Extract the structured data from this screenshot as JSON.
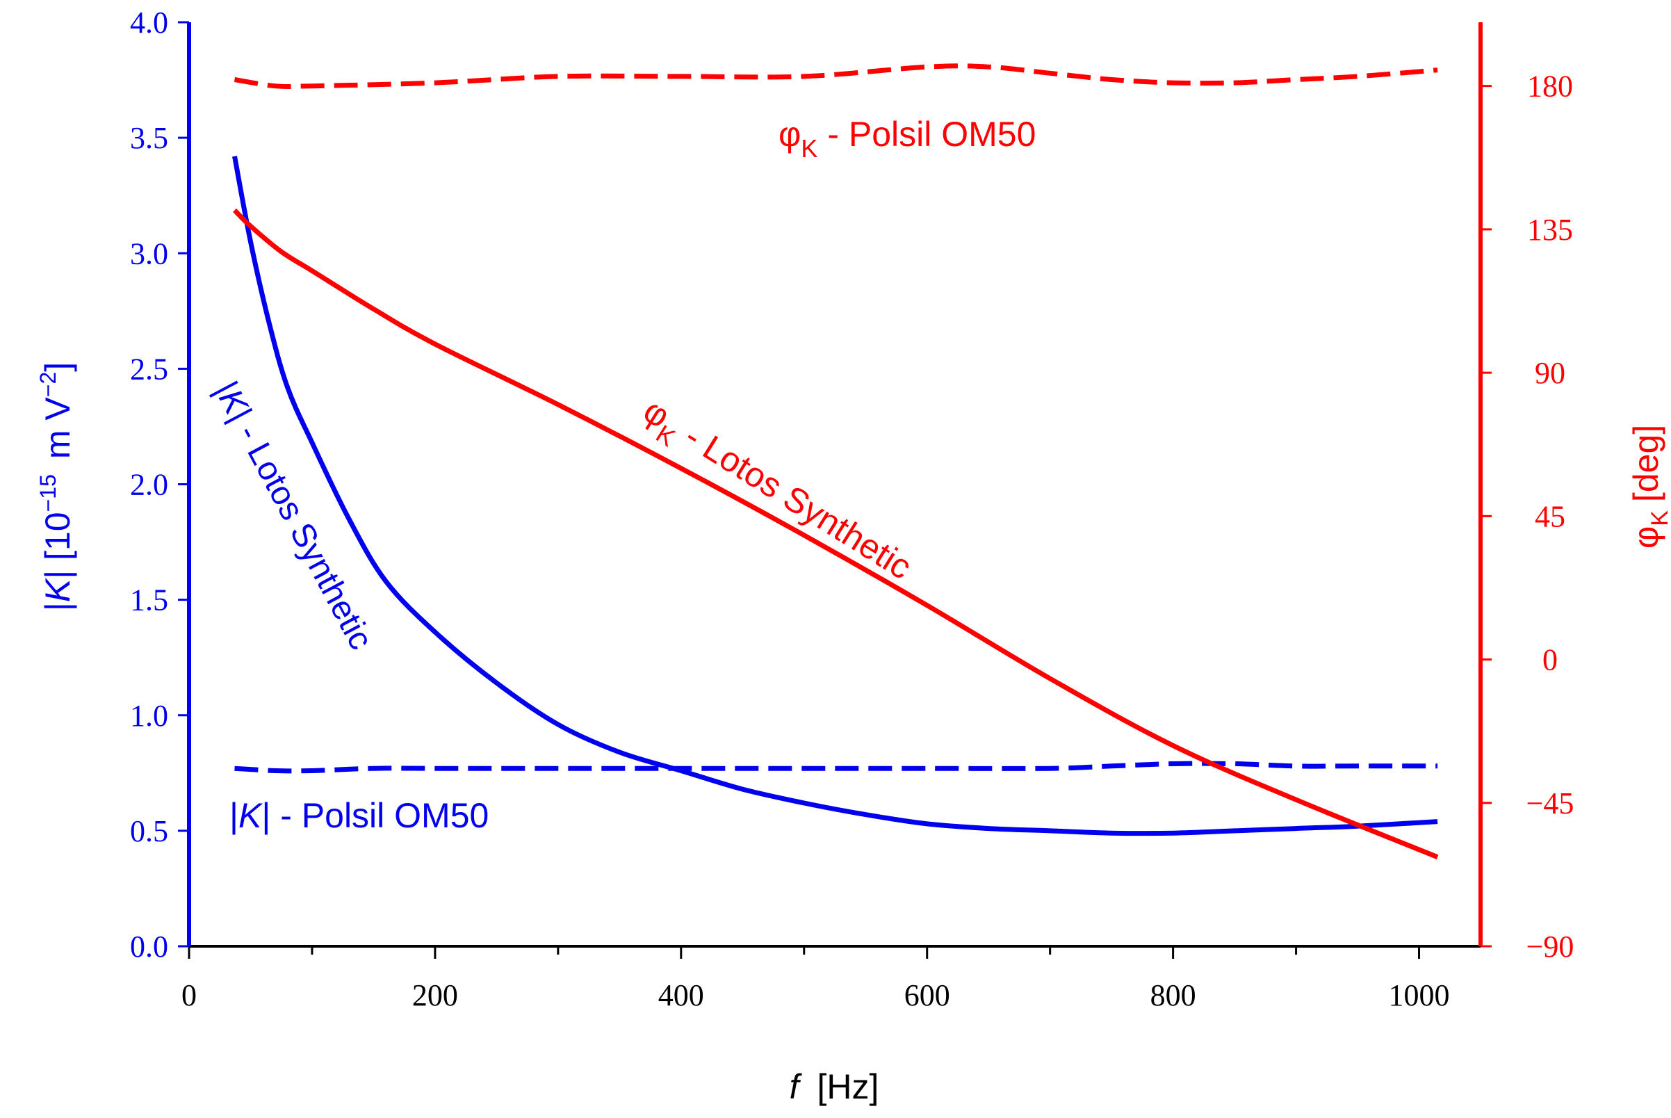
{
  "chart_data": {
    "type": "line",
    "x": {
      "label": "f",
      "unit": "[Hz]",
      "lim": [
        0,
        1050
      ],
      "ticks": [
        0,
        200,
        400,
        600,
        800,
        1000
      ],
      "tick_labels": [
        "0",
        "200",
        "400",
        "600",
        "800",
        "1000"
      ],
      "minor_ticks": [
        100,
        300,
        500,
        700,
        900
      ]
    },
    "y_left": {
      "label_prefix": "|",
      "label_italic": "K",
      "label_mid": "| [10",
      "label_exp": "−15",
      "label_unit": "m V",
      "label_unit_exp": "−2",
      "label_close": "]",
      "lim": [
        0,
        4
      ],
      "ticks": [
        0,
        0.5,
        1,
        1.5,
        2,
        2.5,
        3,
        3.5,
        4
      ],
      "tick_labels": [
        "0.0",
        "0.5",
        "1.0",
        "1.5",
        "2.0",
        "2.5",
        "3.0",
        "3.5",
        "4.0"
      ],
      "color": "#0000ee"
    },
    "y_right": {
      "label_symbol": "φ",
      "label_sub": "K",
      "label_unit": "[deg]",
      "lim": [
        -90,
        200
      ],
      "ticks": [
        -90,
        -45,
        0,
        45,
        90,
        135,
        180
      ],
      "tick_labels": [
        "−90",
        "−45",
        "0",
        "45",
        "90",
        "135",
        "180"
      ],
      "color": "#ff0000"
    },
    "series": [
      {
        "name": "|K| - Lotos Synthetic",
        "axis": "left",
        "style": "solid",
        "color": "#0000ee",
        "x": [
          37,
          50,
          65,
          80,
          100,
          130,
          160,
          200,
          250,
          300,
          350,
          400,
          450,
          500,
          550,
          600,
          650,
          700,
          750,
          800,
          850,
          900,
          950,
          1015
        ],
        "y": [
          3.42,
          3.05,
          2.7,
          2.42,
          2.18,
          1.85,
          1.58,
          1.36,
          1.14,
          0.96,
          0.84,
          0.76,
          0.68,
          0.62,
          0.57,
          0.53,
          0.51,
          0.5,
          0.49,
          0.49,
          0.5,
          0.51,
          0.52,
          0.54
        ]
      },
      {
        "name": "|K| - Polsil OM50",
        "axis": "left",
        "style": "dashed",
        "color": "#0000ee",
        "x": [
          37,
          70,
          100,
          150,
          200,
          300,
          400,
          500,
          600,
          700,
          750,
          800,
          850,
          900,
          950,
          1015
        ],
        "y": [
          0.77,
          0.76,
          0.76,
          0.77,
          0.77,
          0.77,
          0.77,
          0.77,
          0.77,
          0.77,
          0.78,
          0.79,
          0.79,
          0.78,
          0.78,
          0.78
        ]
      },
      {
        "name": "φK - Lotos Synthetic",
        "axis": "right",
        "style": "solid",
        "color": "#ff0000",
        "x": [
          37,
          50,
          75,
          100,
          150,
          200,
          300,
          400,
          500,
          600,
          700,
          800,
          900,
          1015
        ],
        "y": [
          141,
          136,
          128,
          122,
          110,
          99,
          80,
          60,
          39,
          17,
          -6,
          -27,
          -44,
          -62
        ]
      },
      {
        "name": "φK - Polsil OM50",
        "axis": "right",
        "style": "dashed",
        "color": "#ff0000",
        "x": [
          37,
          70,
          100,
          200,
          300,
          400,
          500,
          600,
          650,
          700,
          750,
          800,
          850,
          900,
          950,
          1015
        ],
        "y": [
          182,
          180,
          180,
          181,
          183,
          183,
          183,
          186,
          186,
          184,
          182,
          181,
          181,
          182,
          183,
          185
        ]
      }
    ],
    "annotations": [
      {
        "name": "label-phi-polsil",
        "symbol": "φ",
        "sub": "K",
        "rest": " - Polsil OM50",
        "color": "#ff0000"
      },
      {
        "name": "label-phi-lotos",
        "symbol": "φ",
        "sub": "K",
        "rest": " - Lotos Synthetic",
        "color": "#ff0000"
      },
      {
        "name": "label-k-lotos",
        "pre": "|",
        "italic": "K",
        "rest": "| - Lotos Synthetic",
        "color": "#0000ee"
      },
      {
        "name": "label-k-polsil",
        "pre": "|",
        "italic": "K",
        "rest": "| - Polsil OM50",
        "color": "#0000ee"
      }
    ]
  }
}
